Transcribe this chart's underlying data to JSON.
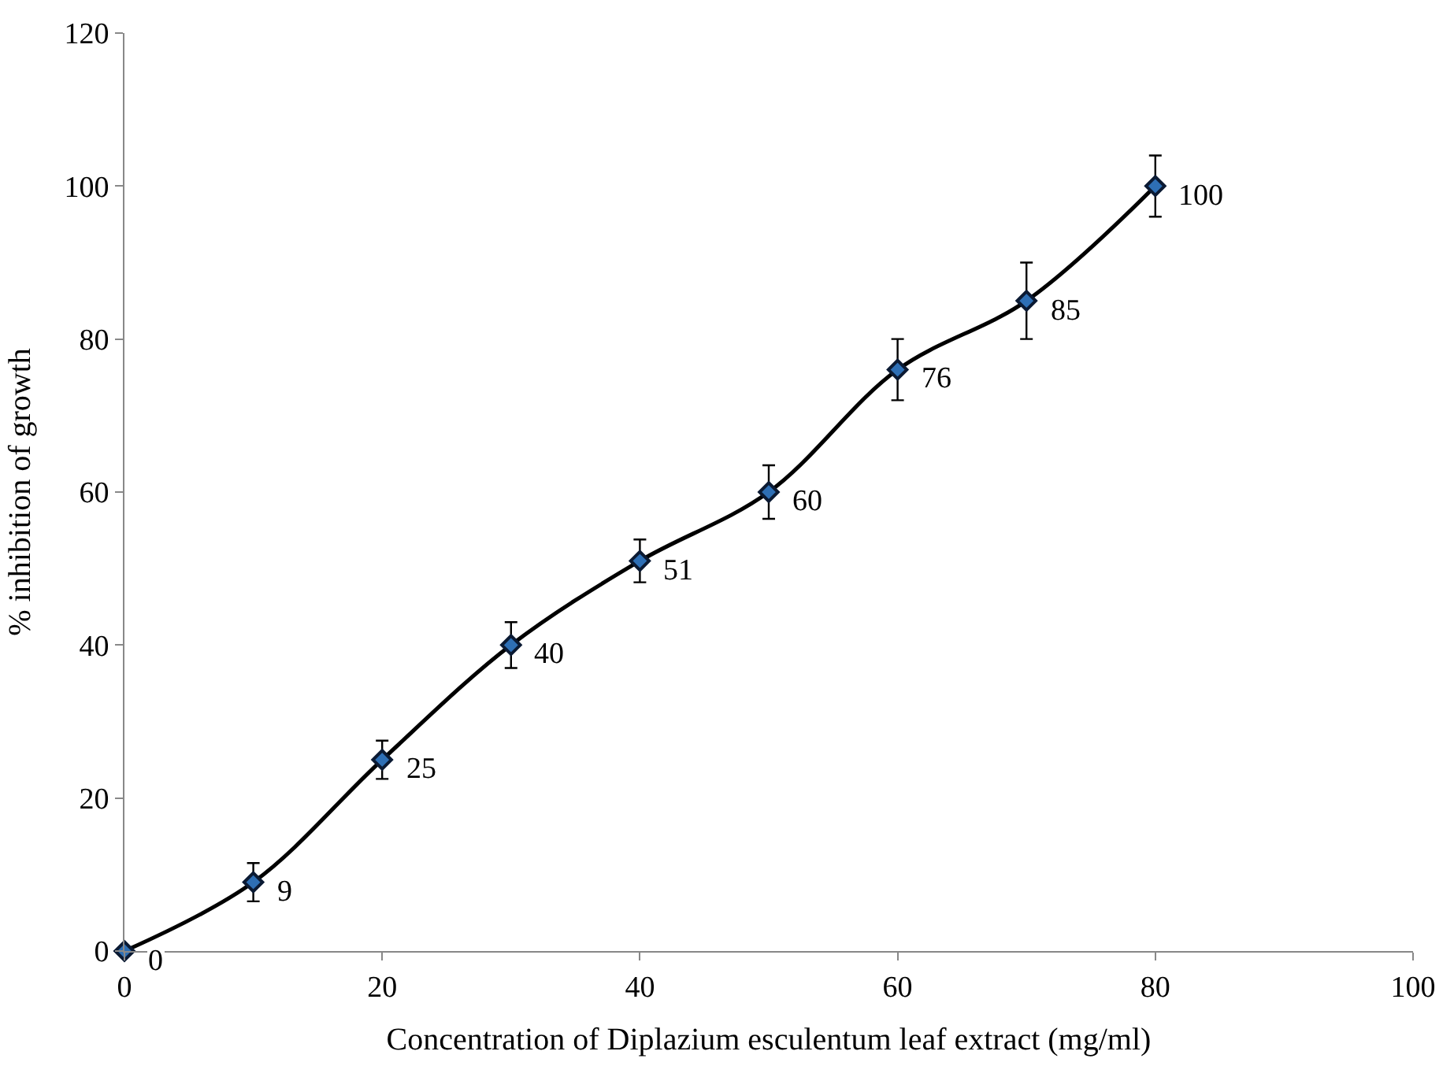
{
  "chart_data": {
    "type": "line",
    "xlabel": "Concentration of Diplazium esculentum leaf extract (mg/ml)",
    "ylabel": "% inhibition of growth",
    "x": [
      0,
      10,
      20,
      30,
      40,
      50,
      60,
      70,
      80
    ],
    "series": [
      {
        "color": "#000000",
        "values": [
          0,
          9,
          25,
          40,
          51,
          60,
          76,
          85,
          100
        ],
        "errors": [
          null,
          2.5,
          2.5,
          3,
          2.8,
          3.5,
          4,
          5,
          4
        ]
      }
    ],
    "xlim": [
      0,
      100
    ],
    "xticks": [
      0,
      20,
      40,
      60,
      80,
      100
    ],
    "ylim": [
      0,
      120
    ],
    "yticks": [
      0,
      20,
      40,
      60,
      80,
      100,
      120
    ],
    "data_labels": true,
    "marker": "diamond",
    "line_style": "solid"
  }
}
